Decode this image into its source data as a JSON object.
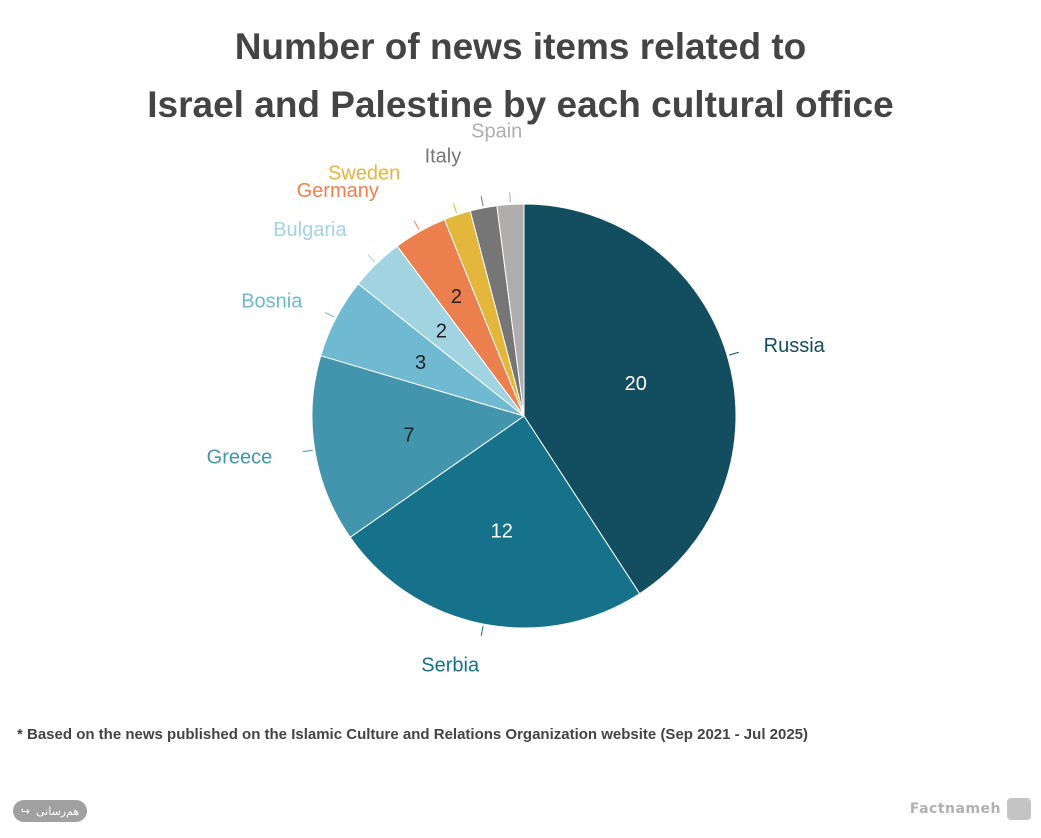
{
  "title_lines": [
    "Number of news items related to",
    "Israel and Palestine by each cultural office"
  ],
  "footnote": "* Based on the news published on the Islamic Culture and Relations Organization website (Sep 2021 - Jul 2025)",
  "share_label": "هم‌رسانی",
  "brand": "Factnameh",
  "chart_data": {
    "type": "pie",
    "title": "Number of news items related to Israel and Palestine by each cultural office",
    "slices": [
      {
        "label": "Russia",
        "value": 20,
        "color": "#124e5f",
        "value_label": "20",
        "label_color": "#124e5f",
        "value_color": "#ffffff"
      },
      {
        "label": "Serbia",
        "value": 12,
        "color": "#16718b",
        "value_label": "12",
        "label_color": "#16718b",
        "value_color": "#ffffff"
      },
      {
        "label": "Greece",
        "value": 7,
        "color": "#4395ad",
        "value_label": "7",
        "label_color": "#4395ad",
        "value_color": "#222222"
      },
      {
        "label": "Bosnia",
        "value": 3,
        "color": "#6fb9d1",
        "value_label": "3",
        "label_color": "#6fb9d1",
        "value_color": "#222222"
      },
      {
        "label": "Bulgaria",
        "value": 2,
        "color": "#a2d3e0",
        "value_label": "2",
        "label_color": "#a2d3e0",
        "value_color": "#222222"
      },
      {
        "label": "Germany",
        "value": 2,
        "color": "#ec7f4e",
        "value_label": "2",
        "label_color": "#ec7f4e",
        "value_color": "#222222"
      },
      {
        "label": "Sweden",
        "value": 1,
        "color": "#e2b73b",
        "value_label": "",
        "label_color": "#e2b73b",
        "value_color": "#222222"
      },
      {
        "label": "Italy",
        "value": 1,
        "color": "#767676",
        "value_label": "",
        "label_color": "#767676",
        "value_color": "#222222"
      },
      {
        "label": "Spain",
        "value": 1,
        "color": "#b0adad",
        "value_label": "",
        "label_color": "#b0adad",
        "value_color": "#222222"
      }
    ]
  }
}
